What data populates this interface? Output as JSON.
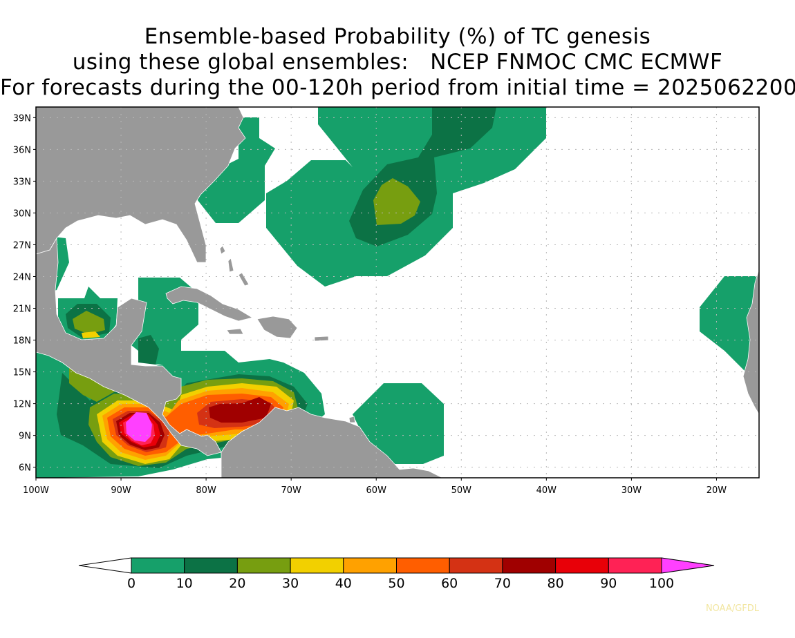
{
  "title": {
    "line1": "Ensemble-based Probability (%) of TC genesis",
    "line2": "using these global ensembles:   NCEP FNMOC CMC ECMWF",
    "line3": "For forecasts during the 00-120h period from initial time = 2025062200"
  },
  "map": {
    "lon_range": [
      -100,
      -15
    ],
    "lat_range": [
      5,
      40
    ],
    "lat_ticks": [
      "39N",
      "36N",
      "33N",
      "30N",
      "27N",
      "24N",
      "21N",
      "18N",
      "15N",
      "12N",
      "9N",
      "6N"
    ],
    "lon_ticks": [
      "100W",
      "90W",
      "80W",
      "70W",
      "60W",
      "50W",
      "40W",
      "30W",
      "20W"
    ],
    "land_color": "#999999",
    "ocean_color": "#ffffff"
  },
  "colorbar": {
    "labels": [
      "0",
      "10",
      "20",
      "30",
      "40",
      "50",
      "60",
      "70",
      "80",
      "90",
      "100"
    ],
    "colors": [
      "#16a06a",
      "#0c7245",
      "#779e10",
      "#f2d000",
      "#ffa100",
      "#ff5e00",
      "#d43214",
      "#a00000",
      "#e80008",
      "#ff2255",
      "#ff40ff"
    ]
  },
  "credit": "NOAA/GFDL"
}
